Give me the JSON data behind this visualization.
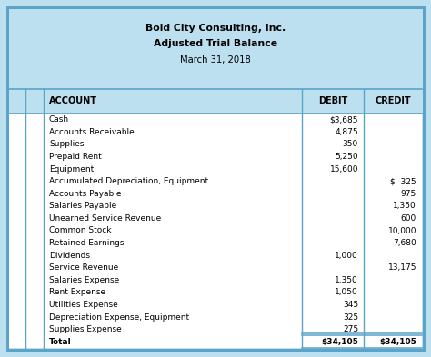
{
  "title_line1": "Bold City Consulting, Inc.",
  "title_line2": "Adjusted Trial Balance",
  "title_line3": "March 31, 2018",
  "col_headers": [
    "ACCOUNT",
    "DEBIT",
    "CREDIT"
  ],
  "rows": [
    [
      "Cash",
      "$3,685",
      ""
    ],
    [
      "Accounts Receivable",
      "4,875",
      ""
    ],
    [
      "Supplies",
      "350",
      ""
    ],
    [
      "Prepaid Rent",
      "5,250",
      ""
    ],
    [
      "Equipment",
      "15,600",
      ""
    ],
    [
      "Accumulated Depreciation, Equipment",
      "",
      "$  325"
    ],
    [
      "Accounts Payable",
      "",
      "975"
    ],
    [
      "Salaries Payable",
      "",
      "1,350"
    ],
    [
      "Unearned Service Revenue",
      "",
      "600"
    ],
    [
      "Common Stock",
      "",
      "10,000"
    ],
    [
      "Retained Earnings",
      "",
      "7,680"
    ],
    [
      "Dividends",
      "1,000",
      ""
    ],
    [
      "Service Revenue",
      "",
      "13,175"
    ],
    [
      "Salaries Expense",
      "1,350",
      ""
    ],
    [
      "Rent Expense",
      "1,050",
      ""
    ],
    [
      "Utilities Expense",
      "345",
      ""
    ],
    [
      "Depreciation Expense, Equipment",
      "325",
      ""
    ],
    [
      "Supplies Expense",
      "275",
      ""
    ],
    [
      "Total",
      "$34,105",
      "$34,105"
    ]
  ],
  "bg_color": "#bce0f0",
  "outer_border_color": "#5ba3c9",
  "inner_border_color": "#5ba3c9",
  "text_color": "#000000",
  "fig_width": 4.74,
  "fig_height": 3.93,
  "dpi": 100
}
